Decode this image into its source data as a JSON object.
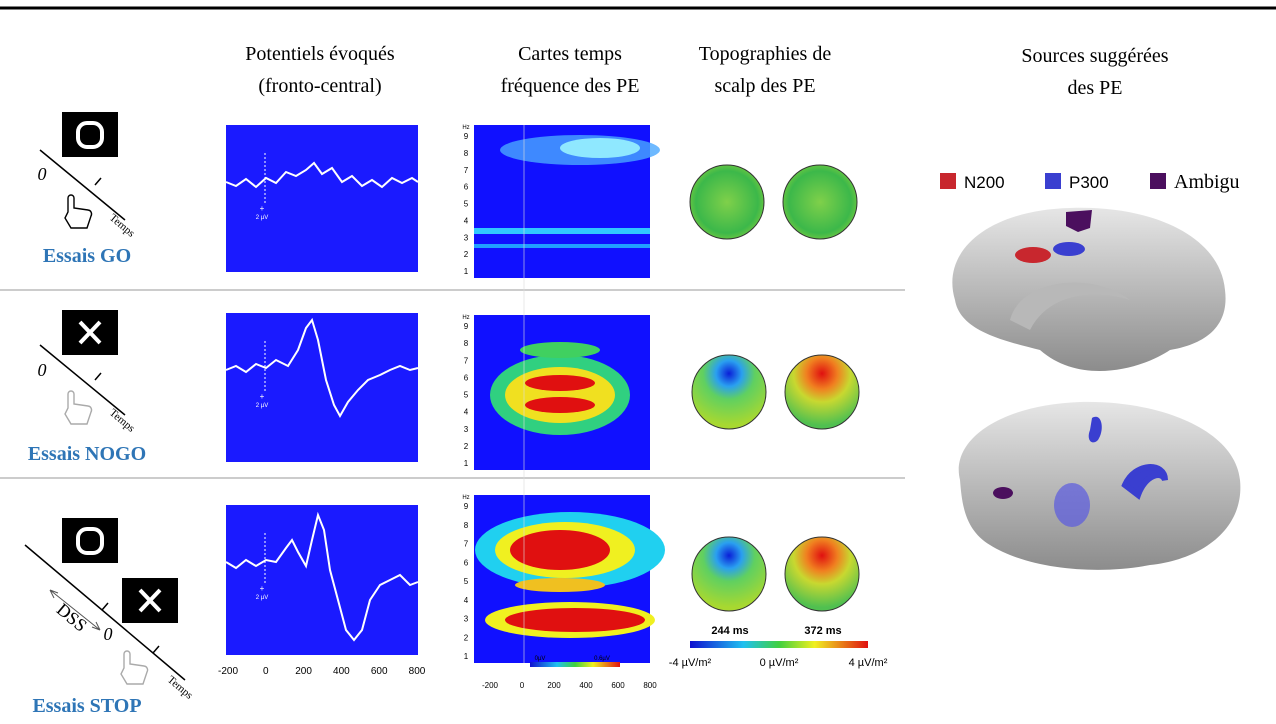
{
  "header": {
    "columns": [
      {
        "lines": [
          "Potentiels évoqués",
          "(fronto-central)"
        ]
      },
      {
        "lines": [
          "Cartes temps",
          "fréquence des PE"
        ]
      },
      {
        "lines": [
          "Topographies de",
          "scalp des PE"
        ]
      },
      {
        "lines": [
          "Sources suggérées",
          "des PE"
        ]
      }
    ]
  },
  "rows": [
    {
      "label": "Essais GO",
      "onset": "0",
      "time_axis": "Temps"
    },
    {
      "label": "Essais NOGO",
      "onset": "0",
      "time_axis": "Temps"
    },
    {
      "label": "Essais STOP",
      "onset": "0",
      "time_axis": "Temps",
      "delay": "DSS"
    }
  ],
  "erp": {
    "sign": "+",
    "scale": "2 µV",
    "xticks": [
      -200,
      0,
      200,
      400,
      600,
      800
    ]
  },
  "time_frequency": {
    "unit": "Hz",
    "yticks": [
      1,
      2,
      3,
      4,
      5,
      6,
      7,
      8,
      9
    ],
    "xticks": [
      -200,
      0,
      200,
      400,
      600,
      800
    ],
    "colorbar": [
      "0µV",
      "0.6µV"
    ]
  },
  "topography": {
    "times": [
      "244 ms",
      "372 ms"
    ],
    "colorbar": [
      "-4 µV/m²",
      "0 µV/m²",
      "4 µV/m²"
    ]
  },
  "sources": {
    "legend": [
      {
        "label": "N200",
        "color": "#c8272e"
      },
      {
        "label": "P300",
        "color": "#3a3fd0"
      },
      {
        "label": "Ambigu",
        "color": "#4b0f5e"
      }
    ]
  }
}
